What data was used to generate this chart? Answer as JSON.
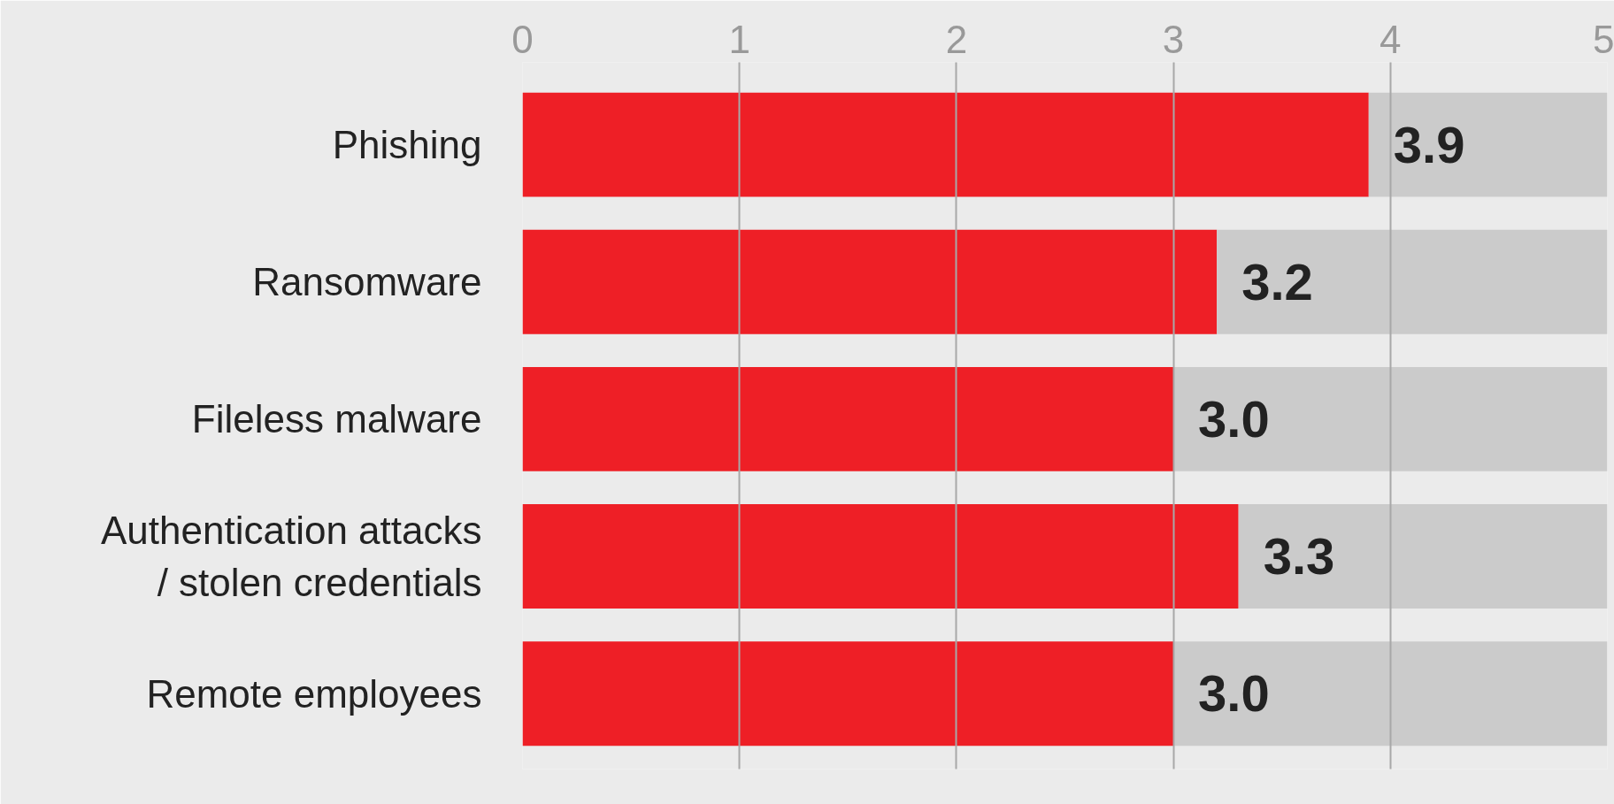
{
  "chart_data": {
    "type": "bar",
    "orientation": "horizontal",
    "stacked": true,
    "categories": [
      "Phishing",
      "Ransomware",
      "Fileless malware",
      "Authentication attacks\n/ stolen credentials",
      "Remote employees"
    ],
    "series": [
      {
        "color": "#ee1f26",
        "values": [
          3.9,
          3.2,
          3.0,
          3.3,
          3.0
        ],
        "value_labels": [
          "3.9",
          "3.2",
          "3.0",
          "3.3",
          "3.0"
        ]
      },
      {
        "color": "#cbcbcb",
        "values": [
          1.1,
          1.8,
          2.0,
          1.7,
          2.0
        ]
      }
    ],
    "xlim": [
      0,
      5
    ],
    "xticks": [
      0,
      1,
      2,
      3,
      4,
      5
    ],
    "grid": "x"
  }
}
